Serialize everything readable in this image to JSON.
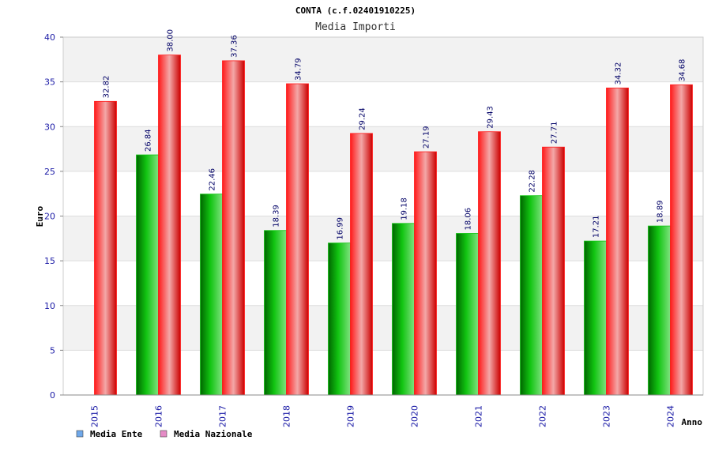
{
  "chart_data": {
    "type": "bar",
    "title": "CONTA (c.f.02401910225)",
    "subtitle": "Media Importi",
    "xlabel": "Anno",
    "ylabel": "Euro",
    "ylim": [
      0,
      40
    ],
    "yticks": [
      "0",
      "5",
      "10",
      "15",
      "20",
      "25",
      "30",
      "35",
      "40"
    ],
    "categories": [
      "2015",
      "2016",
      "2017",
      "2018",
      "2019",
      "2020",
      "2021",
      "2022",
      "2023",
      "2024"
    ],
    "series": [
      {
        "name": "Media Ente",
        "values": [
          null,
          26.84,
          22.46,
          18.39,
          16.99,
          19.18,
          18.06,
          22.28,
          17.21,
          18.89
        ],
        "labels": [
          "",
          "26.84",
          "22.46",
          "18.39",
          "16.99",
          "19.18",
          "18.06",
          "22.28",
          "17.21",
          "18.89"
        ]
      },
      {
        "name": "Media Nazionale",
        "values": [
          32.82,
          38.0,
          37.36,
          34.79,
          29.24,
          27.19,
          29.43,
          27.71,
          34.32,
          34.68
        ],
        "labels": [
          "32.82",
          "38.00",
          "37.36",
          "34.79",
          "29.24",
          "27.19",
          "29.43",
          "27.71",
          "34.32",
          "34.68"
        ]
      }
    ],
    "legend": [
      "Media Ente",
      "Media Nazionale"
    ],
    "legend_position": "bottom-left",
    "grid": true
  },
  "colors": {
    "ente_light": "#7ee27e",
    "ente_mid": "#11c411",
    "ente_dark": "#006600",
    "naz_light": "#f3a8a8",
    "naz_mid": "#ff1a1a",
    "naz_dark": "#cc0000",
    "legend_ente": "#6fa8ea",
    "legend_naz": "#e58bc6",
    "band": "#f2f2f2",
    "gridline": "#dddddd"
  }
}
